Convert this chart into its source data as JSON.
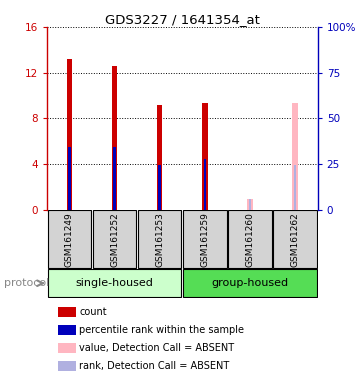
{
  "title": "GDS3227 / 1641354_at",
  "samples": [
    "GSM161249",
    "GSM161252",
    "GSM161253",
    "GSM161259",
    "GSM161260",
    "GSM161262"
  ],
  "count_values": [
    13.2,
    12.6,
    9.2,
    9.3,
    null,
    null
  ],
  "percentile_values": [
    5.5,
    5.5,
    3.9,
    4.4,
    null,
    null
  ],
  "absent_value": [
    null,
    null,
    null,
    null,
    0.9,
    9.3
  ],
  "absent_rank": [
    null,
    null,
    null,
    null,
    0.9,
    3.9
  ],
  "ylim_left": [
    0,
    16
  ],
  "ylim_right": [
    0,
    100
  ],
  "yticks_left": [
    0,
    4,
    8,
    12,
    16
  ],
  "yticks_right": [
    0,
    25,
    50,
    75,
    100
  ],
  "ytick_labels_left": [
    "0",
    "4",
    "8",
    "12",
    "16"
  ],
  "ytick_labels_right": [
    "0",
    "25",
    "50",
    "75",
    "100%"
  ],
  "color_red": "#cc0000",
  "color_blue": "#0000bb",
  "color_absent_value": "#ffb6c1",
  "color_absent_rank": "#b0b0e0",
  "color_group_bg_light": "#ccffcc",
  "color_group_bg_dark": "#55dd55",
  "color_sample_bg": "#d3d3d3",
  "group_single_label": "single-housed",
  "group_group_label": "group-housed",
  "protocol_label": "protocol",
  "red_bar_width": 0.12,
  "blue_bar_width": 0.06,
  "legend_items": [
    {
      "color": "#cc0000",
      "label": "count"
    },
    {
      "color": "#0000bb",
      "label": "percentile rank within the sample"
    },
    {
      "color": "#ffb6c1",
      "label": "value, Detection Call = ABSENT"
    },
    {
      "color": "#b0b0e0",
      "label": "rank, Detection Call = ABSENT"
    }
  ]
}
